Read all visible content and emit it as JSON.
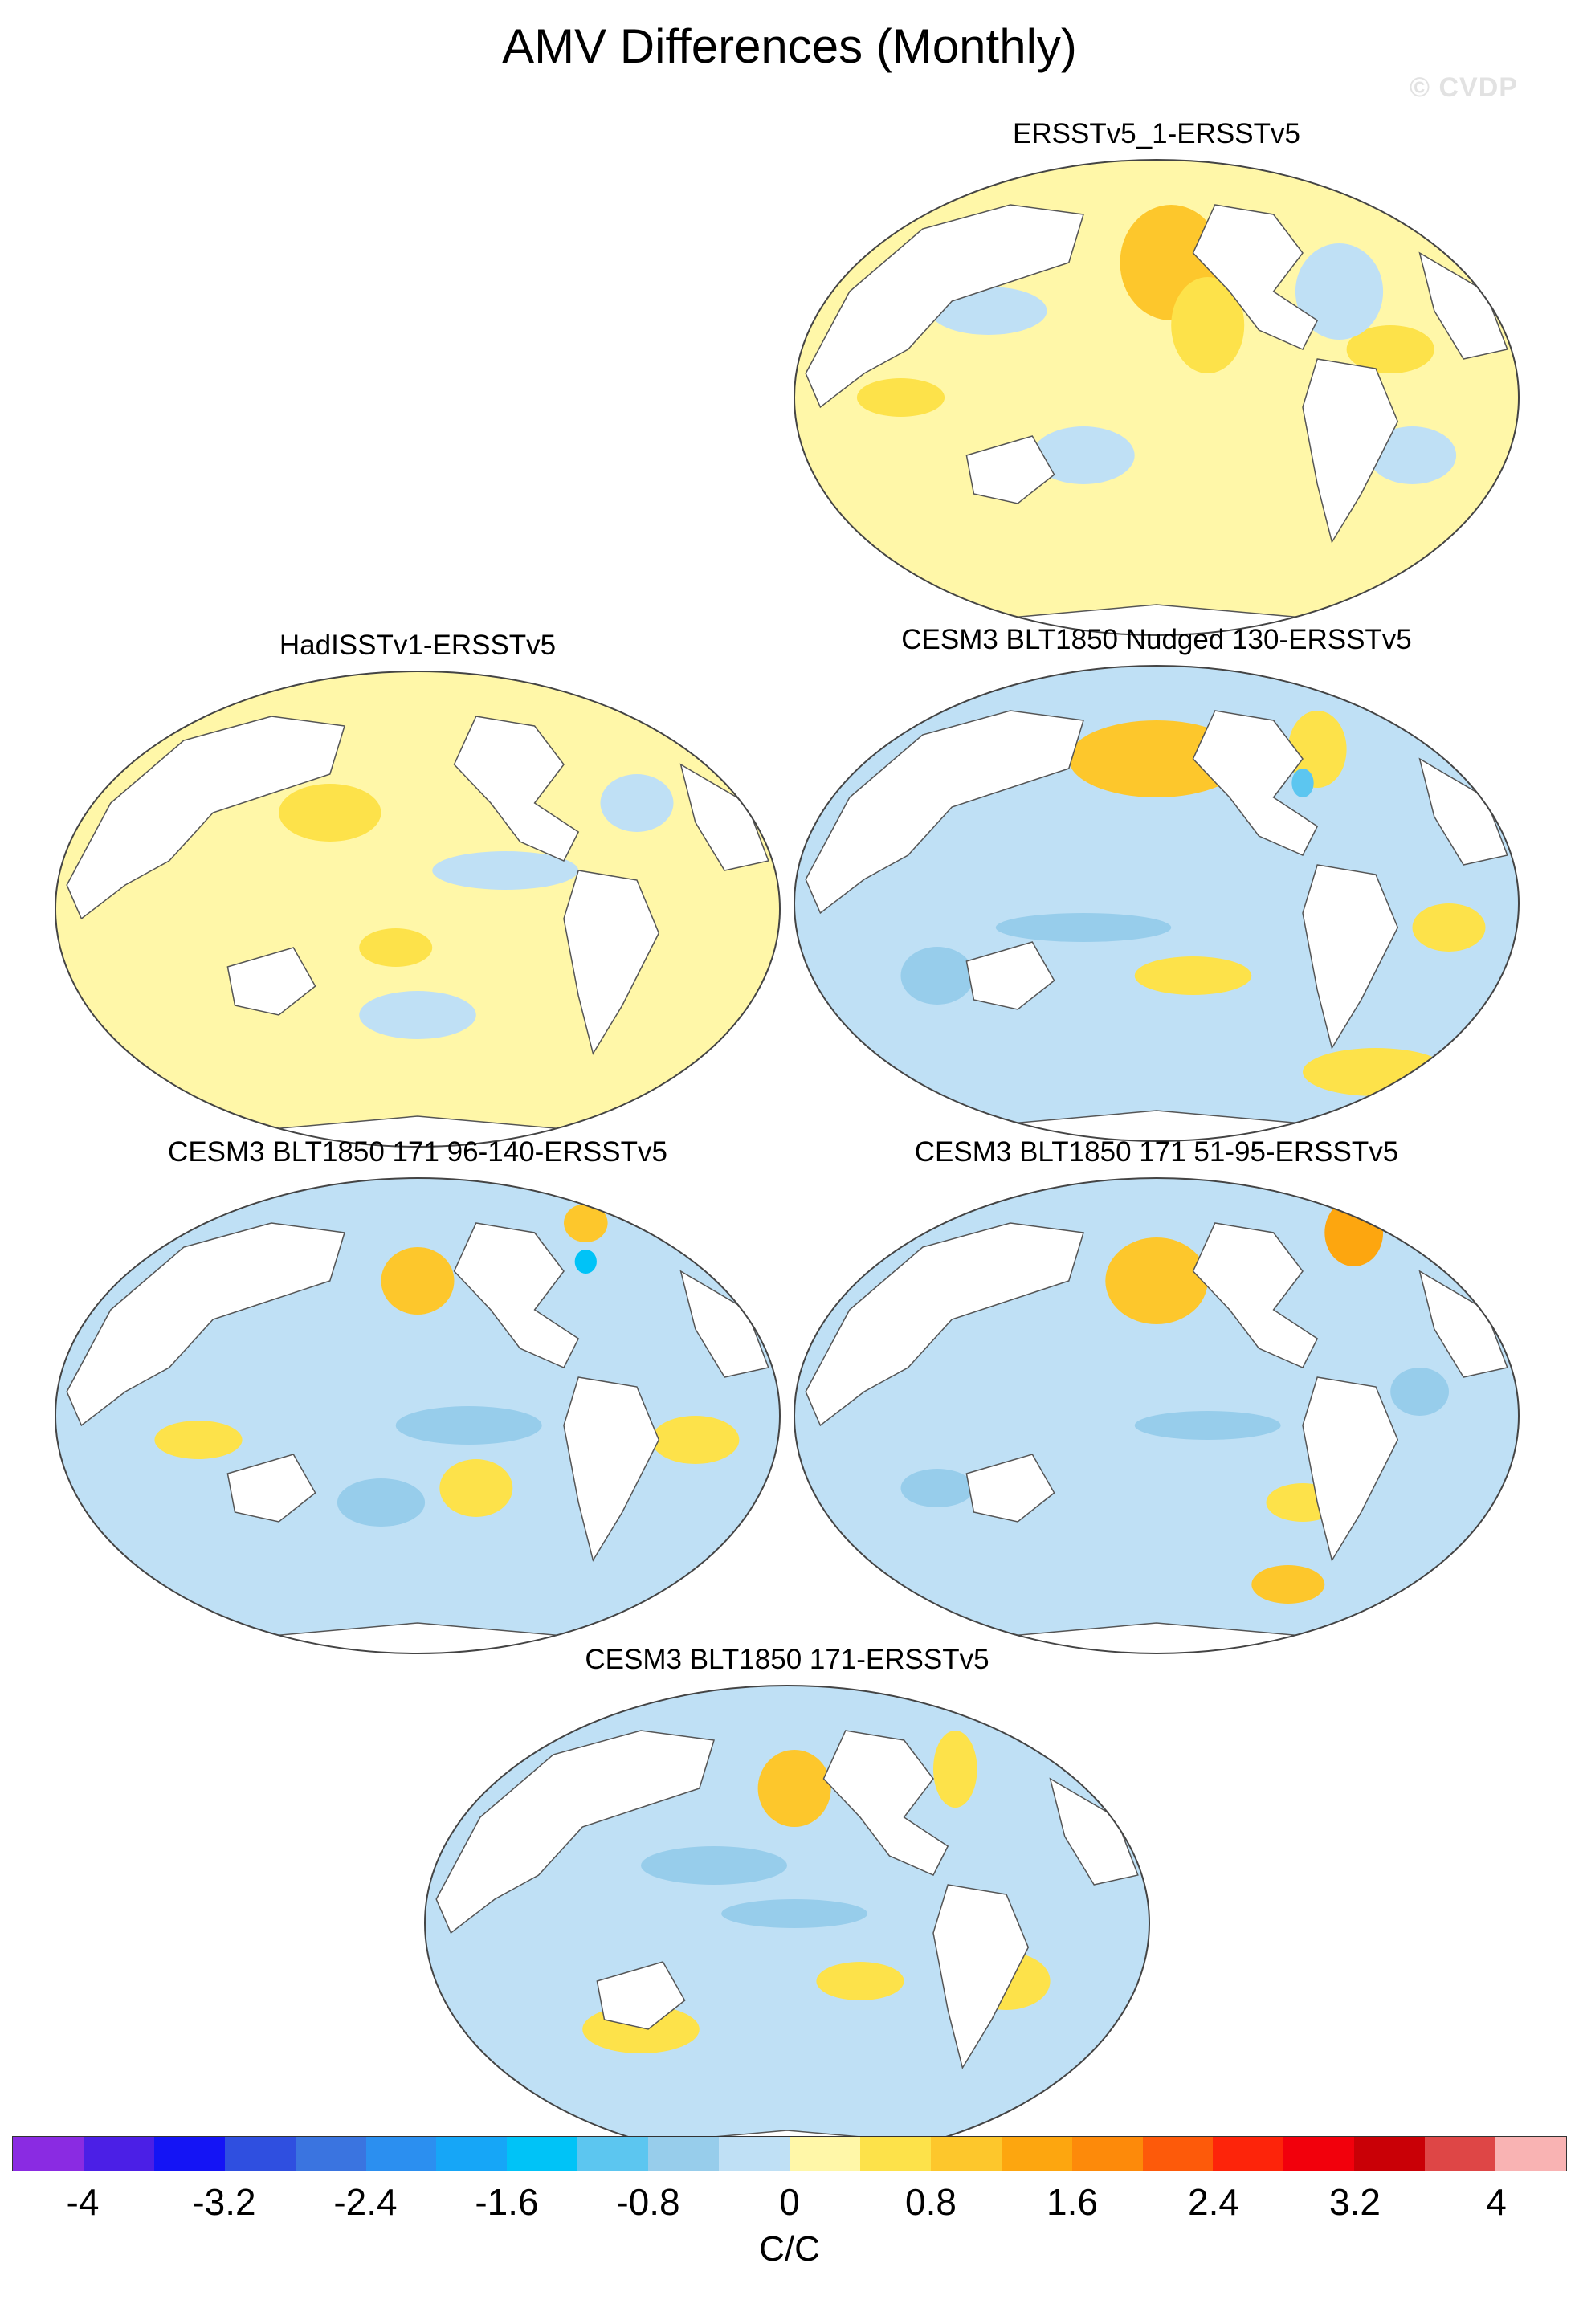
{
  "title": "AMV Differences (Monthly)",
  "watermark": "© CVDP",
  "panels": [
    {
      "title": "ERSSTv5_1-ERSSTv5",
      "bg": "#fff7a8"
    },
    {
      "title": "HadISSTv1-ERSSTv5",
      "bg": "#fff7a8"
    },
    {
      "title": "CESM3 BLT1850 Nudged 130-ERSSTv5",
      "bg": "#bfe0f5"
    },
    {
      "title": "CESM3 BLT1850 171 96-140-ERSSTv5",
      "bg": "#bfe0f5"
    },
    {
      "title": "CESM3 BLT1850 171 51-95-ERSSTv5",
      "bg": "#bfe0f5"
    },
    {
      "title": "CESM3 BLT1850 171-ERSSTv5",
      "bg": "#bfe0f5"
    }
  ],
  "colorbar": {
    "colors": [
      "#8a2be2",
      "#4b1fe6",
      "#1414f5",
      "#2f4fe0",
      "#3a74e0",
      "#2b8ff0",
      "#16a6f7",
      "#00c3f7",
      "#5cc6f0",
      "#97cdeb",
      "#bfe0f5",
      "#fff7a8",
      "#fde24a",
      "#fdc72c",
      "#fda60f",
      "#fd8a0a",
      "#fd5a0a",
      "#fd240a",
      "#f2000c",
      "#c90006",
      "#de4646",
      "#f9b3b3"
    ],
    "ticks": [
      "-4",
      "-3.2",
      "-2.4",
      "-1.6",
      "-0.8",
      "0",
      "0.8",
      "1.6",
      "2.4",
      "3.2",
      "4"
    ],
    "units": "C/C"
  }
}
